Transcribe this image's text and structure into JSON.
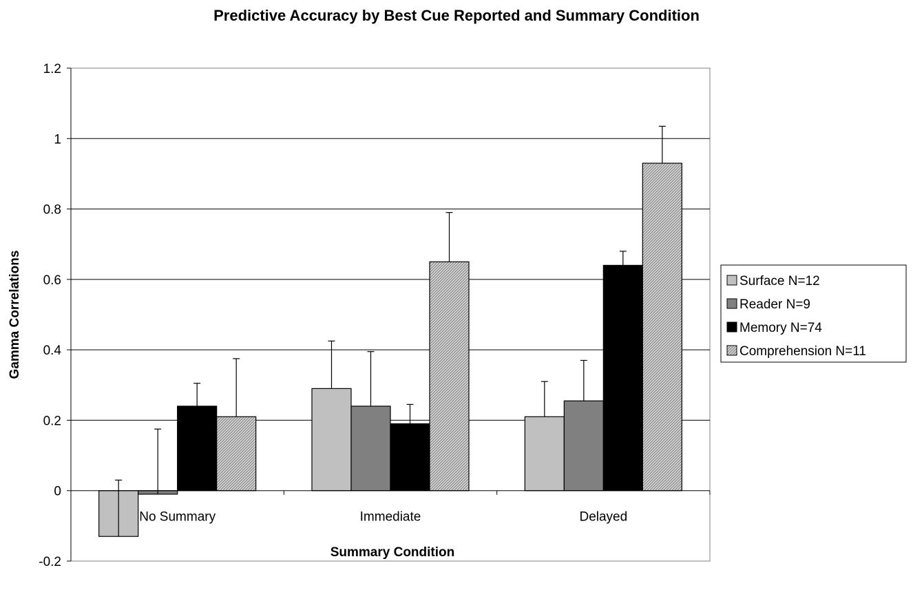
{
  "chart_data": {
    "type": "bar",
    "title": "Predictive Accuracy by Best Cue Reported and Summary Condition",
    "xlabel": "Summary Condition",
    "ylabel": "Gamma Correlations",
    "categories": [
      "No Summary",
      "Immediate",
      "Delayed"
    ],
    "ylim": [
      -0.2,
      1.2
    ],
    "yticks": [
      -0.2,
      0,
      0.2,
      0.4,
      0.6,
      0.8,
      1,
      1.2
    ],
    "ytick_labels": [
      "-0.2",
      "0",
      "0.2",
      "0.4",
      "0.6",
      "0.8",
      "1",
      "1.2"
    ],
    "grid": true,
    "legend_position": "right",
    "series": [
      {
        "name": "Surface N=12",
        "values": [
          -0.13,
          0.29,
          0.21
        ],
        "error": [
          0.16,
          0.135,
          0.1
        ],
        "color": "#c0c0c0",
        "pattern": "solid"
      },
      {
        "name": "Reader N=9",
        "values": [
          -0.01,
          0.24,
          0.255
        ],
        "error": [
          0.185,
          0.155,
          0.115
        ],
        "color": "#808080",
        "pattern": "solid"
      },
      {
        "name": "Memory N=74",
        "values": [
          0.24,
          0.19,
          0.64
        ],
        "error": [
          0.065,
          0.055,
          0.04
        ],
        "color": "#000000",
        "pattern": "solid"
      },
      {
        "name": "Comprehension N=11",
        "values": [
          0.21,
          0.65,
          0.93
        ],
        "error": [
          0.165,
          0.14,
          0.105
        ],
        "color": "#c0c0c0",
        "pattern": "diagonal"
      }
    ]
  }
}
